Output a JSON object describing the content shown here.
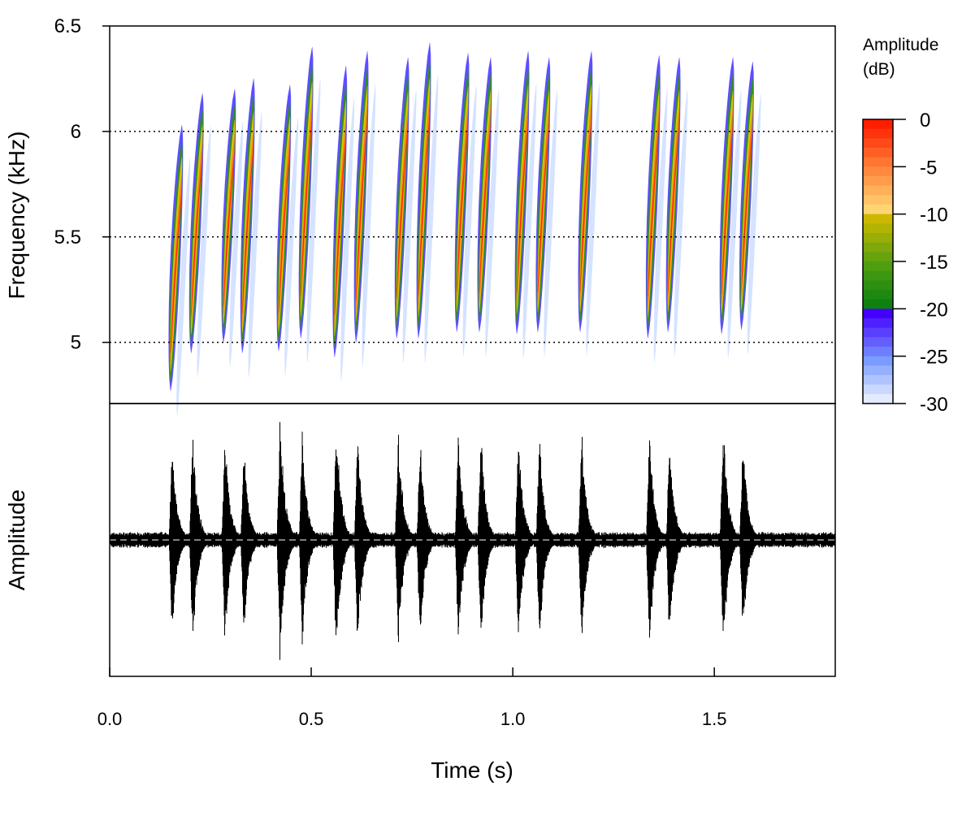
{
  "chart_data": {
    "type": "spectrogram",
    "xlabel": "Time (s)",
    "spectrogram_ylabel": "Frequency (kHz)",
    "oscillogram_ylabel": "Amplitude",
    "xlim": [
      0,
      1.8
    ],
    "ylim": [
      4.71,
      6.5
    ],
    "x_ticks": [
      "0.0",
      "0.5",
      "1.0",
      "1.5"
    ],
    "x_tick_values": [
      0,
      0.5,
      1.0,
      1.5
    ],
    "y_ticks": [
      "5",
      "5.5",
      "6",
      "6.5"
    ],
    "y_tick_values": [
      5,
      5.5,
      6,
      6.5
    ],
    "gridlines_khz": [
      5,
      5.5,
      6
    ],
    "colorbar": {
      "title_line1": "Amplitude",
      "title_line2": "(dB)",
      "range": [
        -30,
        0
      ],
      "ticks": [
        "0",
        "-5",
        "-10",
        "-15",
        "-20",
        "-25",
        "-30"
      ],
      "tick_values": [
        0,
        -5,
        -10,
        -15,
        -20,
        -25,
        -30
      ],
      "anchors": [
        {
          "db": 0,
          "color": "#FF1E00"
        },
        {
          "db": -5,
          "color": "#FF8A3D"
        },
        {
          "db": -9.9,
          "color": "#FFE680"
        },
        {
          "db": -10,
          "color": "#CCB800"
        },
        {
          "db": -15,
          "color": "#4E9E10"
        },
        {
          "db": -19.9,
          "color": "#007A10"
        },
        {
          "db": -20,
          "color": "#4400FF"
        },
        {
          "db": -25,
          "color": "#7A9CFF"
        },
        {
          "db": -30,
          "color": "#FFFFFF"
        }
      ]
    },
    "notes": [
      {
        "t": 0.151,
        "fmin": 4.77,
        "fmax": 6.03,
        "amp": 0.76
      },
      {
        "t": 0.202,
        "fmin": 4.95,
        "fmax": 6.18,
        "amp": 0.85
      },
      {
        "t": 0.282,
        "fmin": 5.0,
        "fmax": 6.2,
        "amp": 0.83
      },
      {
        "t": 0.329,
        "fmin": 4.95,
        "fmax": 6.25,
        "amp": 0.74
      },
      {
        "t": 0.419,
        "fmin": 4.96,
        "fmax": 6.22,
        "amp": 0.98
      },
      {
        "t": 0.474,
        "fmin": 5.02,
        "fmax": 6.4,
        "amp": 0.83
      },
      {
        "t": 0.558,
        "fmin": 4.93,
        "fmax": 6.31,
        "amp": 0.98
      },
      {
        "t": 0.611,
        "fmin": 5.0,
        "fmax": 6.38,
        "amp": 0.88
      },
      {
        "t": 0.712,
        "fmin": 5.02,
        "fmax": 6.35,
        "amp": 0.86
      },
      {
        "t": 0.766,
        "fmin": 5.02,
        "fmax": 6.42,
        "amp": 0.83
      },
      {
        "t": 0.861,
        "fmin": 5.05,
        "fmax": 6.37,
        "amp": 0.86
      },
      {
        "t": 0.917,
        "fmin": 5.05,
        "fmax": 6.35,
        "amp": 0.83
      },
      {
        "t": 1.01,
        "fmin": 5.04,
        "fmax": 6.38,
        "amp": 0.86
      },
      {
        "t": 1.062,
        "fmin": 5.05,
        "fmax": 6.35,
        "amp": 0.82
      },
      {
        "t": 1.167,
        "fmin": 5.05,
        "fmax": 6.38,
        "amp": 0.88
      },
      {
        "t": 1.335,
        "fmin": 5.02,
        "fmax": 6.36,
        "amp": 0.86
      },
      {
        "t": 1.385,
        "fmin": 5.05,
        "fmax": 6.35,
        "amp": 0.83
      },
      {
        "t": 1.518,
        "fmin": 5.04,
        "fmax": 6.35,
        "amp": 0.94
      },
      {
        "t": 1.567,
        "fmin": 5.06,
        "fmax": 6.33,
        "amp": 0.8
      }
    ]
  }
}
